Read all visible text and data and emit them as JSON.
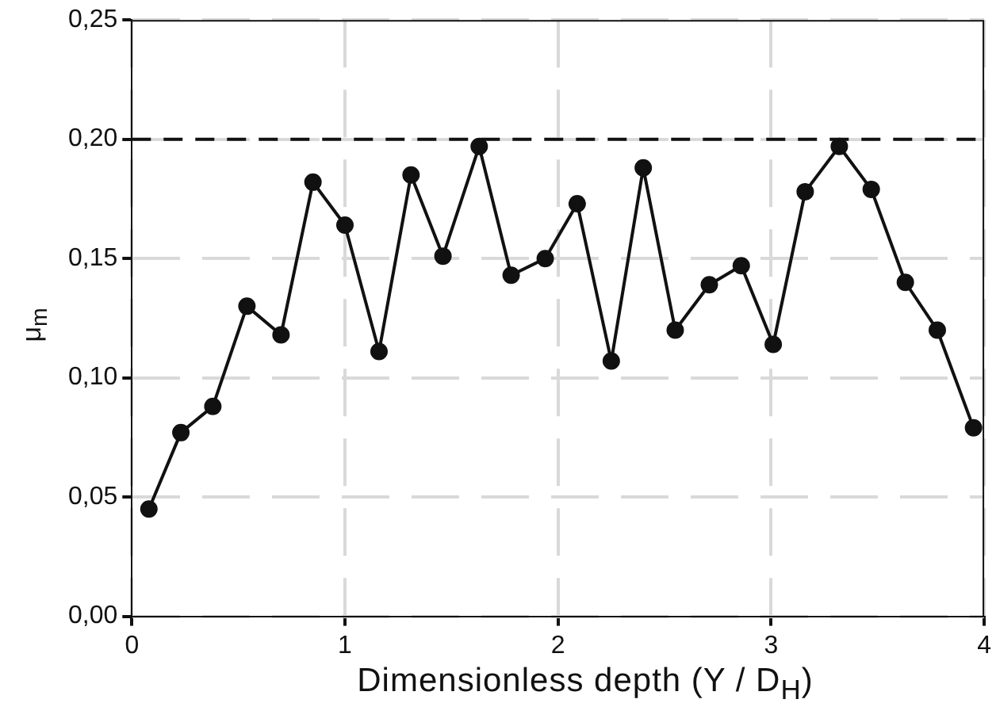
{
  "chart_data": {
    "type": "line",
    "xlabel": "Dimensionless depth (Y / D$_{H}$)",
    "ylabel": "μ$_{m}$",
    "x": [
      0.08,
      0.23,
      0.38,
      0.54,
      0.7,
      0.85,
      1.0,
      1.16,
      1.31,
      1.46,
      1.63,
      1.78,
      1.94,
      2.09,
      2.25,
      2.4,
      2.55,
      2.71,
      2.86,
      3.01,
      3.16,
      3.32,
      3.47,
      3.63,
      3.78,
      3.95
    ],
    "series": [
      {
        "color": "#111111",
        "values": [
          0.045,
          0.077,
          0.088,
          0.13,
          0.118,
          0.182,
          0.164,
          0.111,
          0.185,
          0.151,
          0.197,
          0.143,
          0.15,
          0.173,
          0.107,
          0.188,
          0.12,
          0.139,
          0.147,
          0.114,
          0.178,
          0.197,
          0.179,
          0.14,
          0.12,
          0.079
        ]
      }
    ],
    "xlim": [
      0,
      4
    ],
    "xticks": [
      0,
      1,
      2,
      3,
      4
    ],
    "ylim": [
      0,
      0.25
    ],
    "yticks": [
      {
        "value": 0,
        "label": "0,00"
      },
      {
        "value": 0.05,
        "label": "0,05"
      },
      {
        "value": 0.1,
        "label": "0,10"
      },
      {
        "value": 0.15,
        "label": "0,15"
      },
      {
        "value": 0.2,
        "label": "0,20"
      },
      {
        "value": 0.25,
        "label": "0,25"
      }
    ],
    "ref_lines": [
      {
        "axis": "y",
        "value": 0.2,
        "color": "#111111",
        "line_style": "dashed"
      }
    ],
    "grid": true,
    "legend": false,
    "marker": "circle",
    "line_style": "solid"
  }
}
